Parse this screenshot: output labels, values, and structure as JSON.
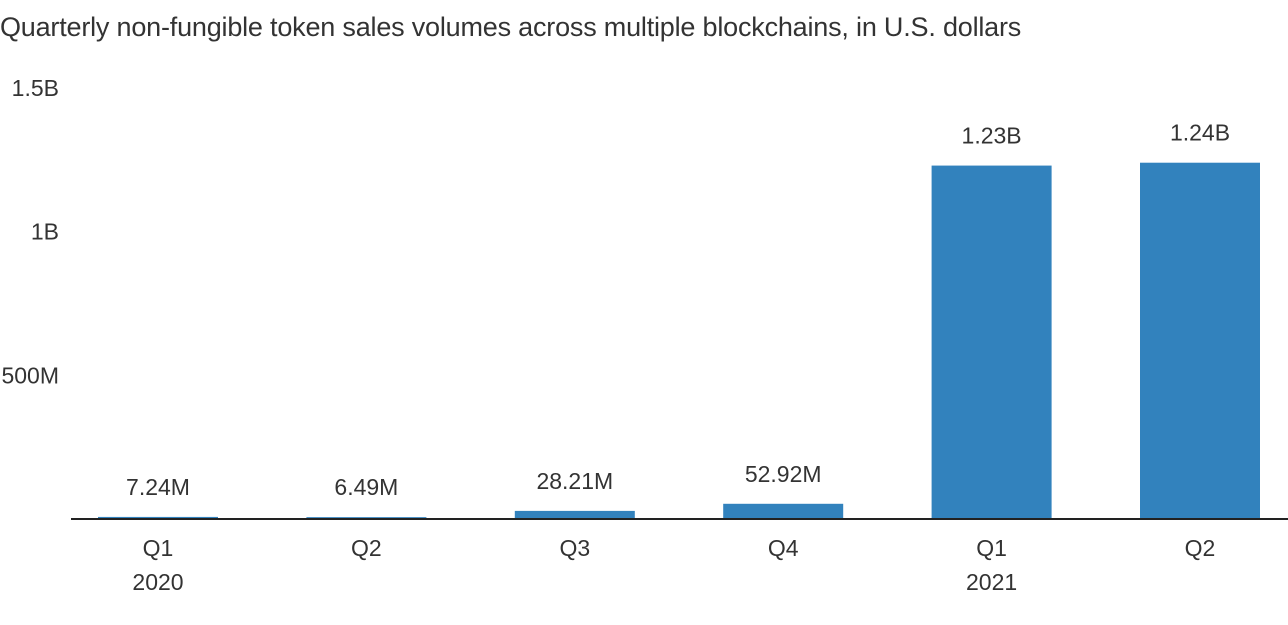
{
  "chart_data": {
    "type": "bar",
    "title": "Quarterly non-fungible token sales volumes across multiple blockchains, in U.S. dollars",
    "categories": [
      "Q1",
      "Q2",
      "Q3",
      "Q4",
      "Q1",
      "Q2"
    ],
    "year_labels": [
      "2020",
      "",
      "",
      "",
      "2021",
      ""
    ],
    "values": [
      7240000,
      6490000,
      28210000,
      52920000,
      1230000000,
      1240000000
    ],
    "value_labels": [
      "7.24M",
      "6.49M",
      "28.21M",
      "52.92M",
      "1.23B",
      "1.24B"
    ],
    "yticks": [
      {
        "value": 500000000,
        "label": "500M"
      },
      {
        "value": 1000000000,
        "label": "1B"
      },
      {
        "value": 1500000000,
        "label": "1.5B"
      }
    ],
    "ylim": [
      0,
      1500000000
    ],
    "xlabel": "",
    "ylabel": "",
    "grid": false,
    "bar_color": "#3282bd",
    "axis_color": "#222222"
  }
}
